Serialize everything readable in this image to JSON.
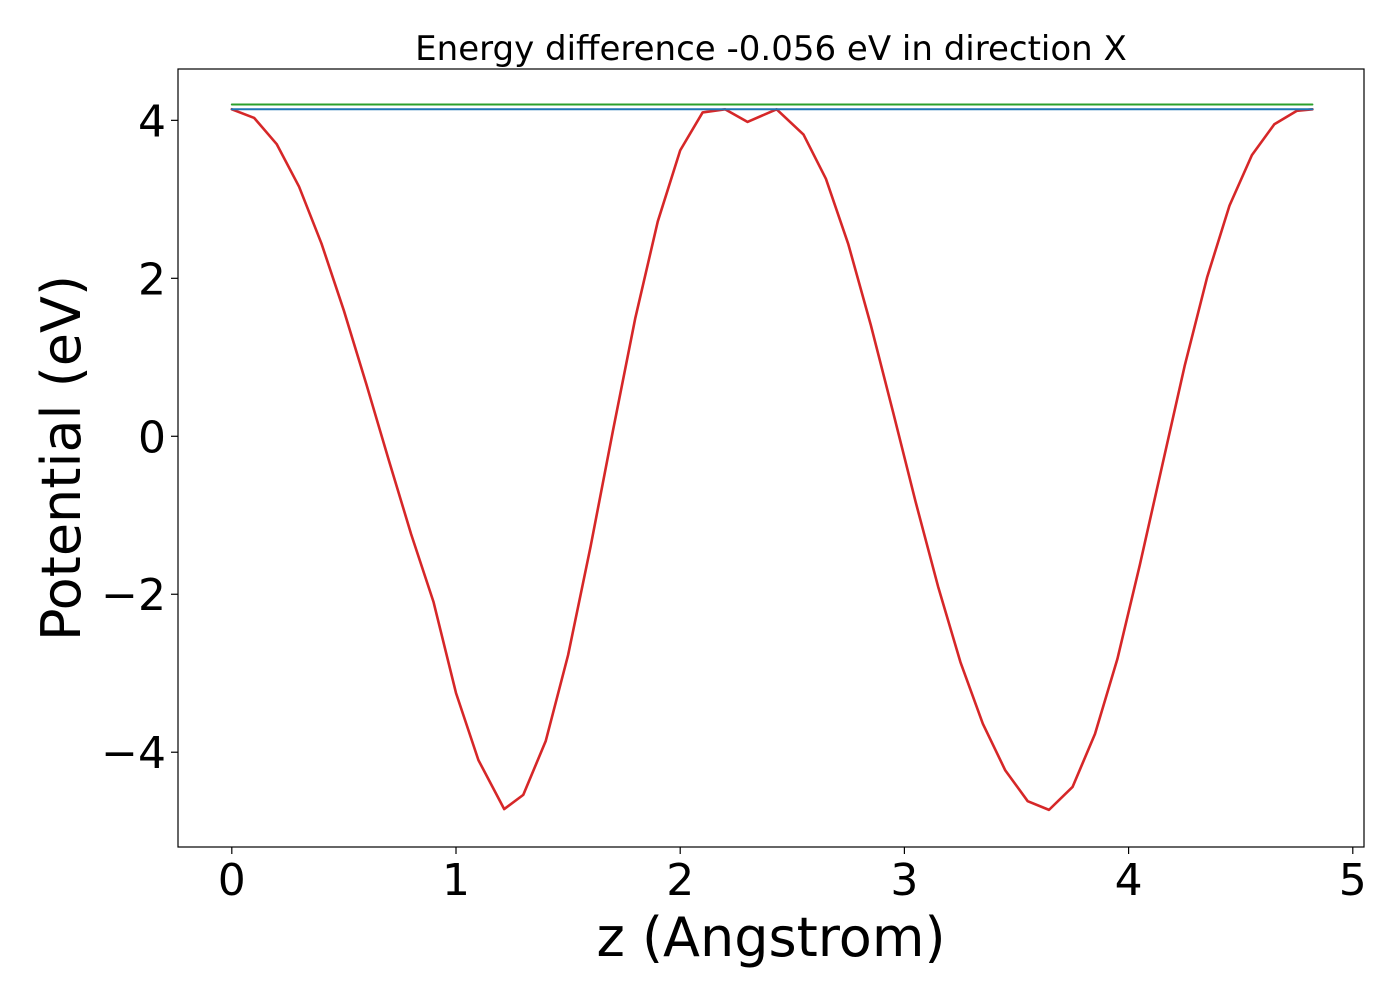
{
  "chart_data": {
    "type": "line",
    "title": "Energy difference -0.056 eV in direction X",
    "xlabel": "z (Angstrom)",
    "ylabel": "Potential (eV)",
    "xlim": [
      -0.24,
      5.05
    ],
    "ylim": [
      -5.2,
      4.65
    ],
    "xticks": [
      0,
      1,
      2,
      3,
      4,
      5
    ],
    "yticks": [
      -4,
      -2,
      0,
      2,
      4
    ],
    "xtick_labels": [
      "0",
      "1",
      "2",
      "3",
      "4",
      "5"
    ],
    "ytick_labels": [
      "−4",
      "−2",
      "0",
      "2",
      "4"
    ],
    "grid": false,
    "series": [
      {
        "color": "#d62728",
        "x": [
          0,
          0.1,
          0.2,
          0.3,
          0.4,
          0.5,
          0.6,
          0.7,
          0.8,
          0.9,
          1.0,
          1.1,
          1.215,
          1.3,
          1.4,
          1.5,
          1.6,
          1.7,
          1.8,
          1.9,
          2.0,
          2.1,
          2.2,
          2.3,
          2.43,
          2.55,
          2.65,
          2.75,
          2.85,
          2.95,
          3.05,
          3.15,
          3.25,
          3.35,
          3.45,
          3.55,
          3.645,
          3.75,
          3.85,
          3.95,
          4.05,
          4.15,
          4.25,
          4.35,
          4.45,
          4.55,
          4.65,
          4.75,
          4.82
        ],
        "values": [
          4.14,
          4.03,
          3.7,
          3.16,
          2.44,
          1.59,
          0.66,
          -0.3,
          -1.24,
          -2.1,
          -3.25,
          -4.1,
          -4.72,
          -4.54,
          -3.86,
          -2.77,
          -1.4,
          0.07,
          1.5,
          2.72,
          3.62,
          4.1,
          4.14,
          3.98,
          4.14,
          3.82,
          3.26,
          2.43,
          1.41,
          0.3,
          -0.83,
          -1.9,
          -2.86,
          -3.64,
          -4.23,
          -4.62,
          -4.73,
          -4.44,
          -3.77,
          -2.82,
          -1.63,
          -0.37,
          0.89,
          2.01,
          2.92,
          3.56,
          3.95,
          4.12,
          4.14
        ]
      },
      {
        "color": "#2ca02c",
        "x": [
          0,
          4.82
        ],
        "values": [
          4.2,
          4.2
        ]
      },
      {
        "color": "#1f77b4",
        "x": [
          0,
          4.82
        ],
        "values": [
          4.14,
          4.14
        ]
      }
    ]
  }
}
